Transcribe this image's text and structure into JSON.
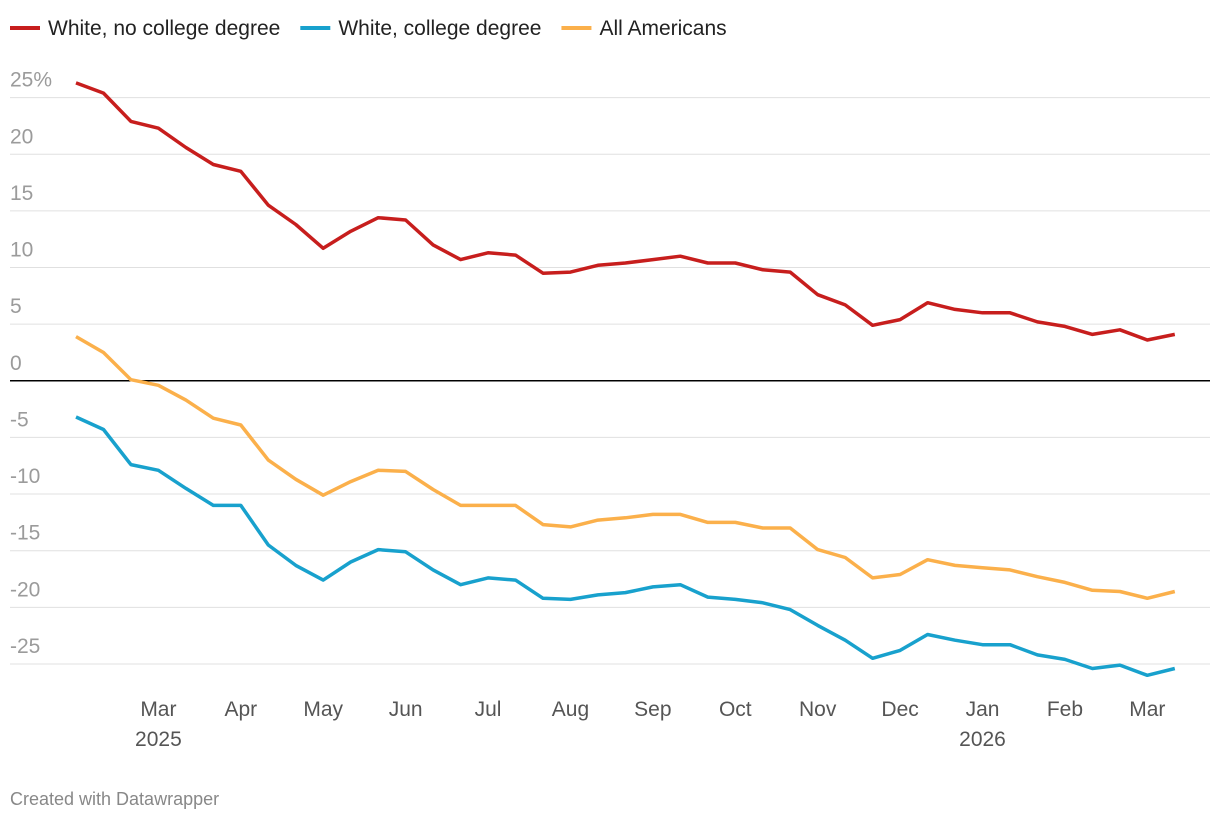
{
  "chart_data": {
    "type": "line",
    "x": [
      null,
      null,
      null,
      "Mar 2025",
      null,
      null,
      "Apr",
      null,
      null,
      "May",
      null,
      null,
      "Jun",
      null,
      null,
      "Jul",
      null,
      null,
      "Aug",
      null,
      null,
      "Sep",
      null,
      null,
      "Oct",
      null,
      null,
      "Nov",
      null,
      null,
      "Dec",
      null,
      null,
      "Jan 2026",
      null,
      null,
      "Feb",
      null,
      null,
      "Mar",
      null
    ],
    "series": [
      {
        "name": "White, no college degree",
        "color": "#c71e1d",
        "values": [
          26.3,
          25.4,
          22.9,
          22.3,
          20.6,
          19.1,
          18.5,
          15.5,
          13.8,
          11.7,
          13.2,
          14.4,
          14.2,
          12,
          10.7,
          11.3,
          11.1,
          9.5,
          9.6,
          10.2,
          10.4,
          10.7,
          11,
          10.4,
          10.4,
          9.8,
          9.6,
          7.6,
          6.7,
          4.9,
          5.4,
          6.9,
          6.3,
          6,
          6,
          5.2,
          4.8,
          4.1,
          4.5,
          3.6,
          4.1
        ]
      },
      {
        "name": "White, college degree",
        "color": "#18a1cd",
        "values": [
          -3.2,
          -4.3,
          -7.4,
          -7.9,
          -9.5,
          -11,
          -11,
          -14.5,
          -16.3,
          -17.6,
          -16,
          -14.9,
          -15.1,
          -16.7,
          -18,
          -17.4,
          -17.6,
          -19.2,
          -19.3,
          -18.9,
          -18.7,
          -18.2,
          -18,
          -19.1,
          -19.3,
          -19.6,
          -20.2,
          -21.6,
          -22.9,
          -24.5,
          -23.8,
          -22.4,
          -22.9,
          -23.3,
          -23.3,
          -24.2,
          -24.6,
          -25.4,
          -25.1,
          -26,
          -25.4
        ]
      },
      {
        "name": "All Americans",
        "color": "#fbb04b",
        "values": [
          3.9,
          2.5,
          0.1,
          -0.4,
          -1.7,
          -3.3,
          -3.9,
          -7,
          -8.7,
          -10.1,
          -8.9,
          -7.9,
          -8,
          -9.6,
          -11,
          -11,
          -11,
          -12.7,
          -12.9,
          -12.3,
          -12.1,
          -11.8,
          -11.8,
          -12.5,
          -12.5,
          -13,
          -13,
          -14.9,
          -15.6,
          -17.4,
          -17.1,
          -15.8,
          -16.3,
          -16.5,
          -16.7,
          -17.3,
          -17.8,
          -18.5,
          -18.6,
          -19.2,
          -18.6
        ]
      }
    ],
    "ylim": [
      -27,
      27
    ],
    "yticks": [
      {
        "value": 25,
        "label": "25%"
      },
      20,
      15,
      10,
      5,
      0,
      -5,
      -10,
      -15,
      -20,
      -25
    ],
    "grid": true,
    "footer": "Created with Datawrapper"
  }
}
